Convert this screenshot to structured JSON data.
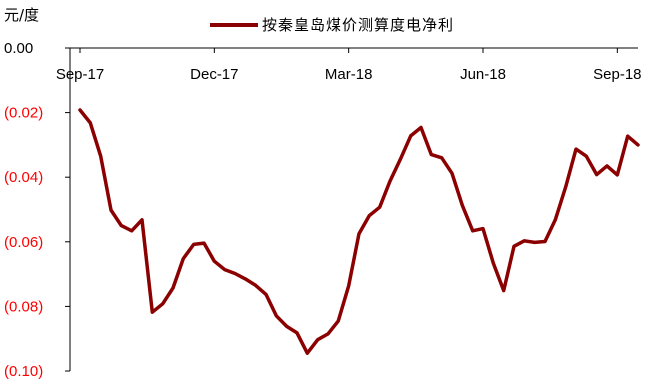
{
  "chart_data": {
    "type": "line",
    "title": "",
    "unit_label": "元/度",
    "xlabel": "",
    "ylabel": "",
    "ylim": [
      -0.1,
      0.0
    ],
    "y_ticks": [
      0.0,
      -0.02,
      -0.04,
      -0.06,
      -0.08,
      -0.1
    ],
    "y_tick_labels": [
      "0.00",
      "(0.02)",
      "(0.04)",
      "(0.06)",
      "(0.08)",
      "(0.10)"
    ],
    "negative_label_color": "#ff0000",
    "positive_label_color": "#000000",
    "x_tick_labels": [
      "Sep-17",
      "Dec-17",
      "Mar-18",
      "Jun-18",
      "Sep-18"
    ],
    "x_tick_positions": [
      0,
      13,
      26,
      39,
      52
    ],
    "legend_position": "top-center",
    "grid": false,
    "series": [
      {
        "name": "按秦皇岛煤价测算度电净利",
        "color": "#8b0000",
        "values": [
          -0.0192,
          -0.0232,
          -0.0335,
          -0.0502,
          -0.055,
          -0.0566,
          -0.0532,
          -0.0818,
          -0.0792,
          -0.0743,
          -0.0652,
          -0.0608,
          -0.0604,
          -0.066,
          -0.0686,
          -0.0698,
          -0.0715,
          -0.0735,
          -0.0763,
          -0.0829,
          -0.0862,
          -0.0882,
          -0.0945,
          -0.0903,
          -0.0885,
          -0.0845,
          -0.0736,
          -0.0575,
          -0.0519,
          -0.0493,
          -0.0412,
          -0.0345,
          -0.0272,
          -0.0246,
          -0.033,
          -0.034,
          -0.0388,
          -0.0487,
          -0.0566,
          -0.0559,
          -0.0666,
          -0.0751,
          -0.0614,
          -0.0597,
          -0.0602,
          -0.0599,
          -0.0532,
          -0.043,
          -0.0313,
          -0.0335,
          -0.0392,
          -0.0365,
          -0.0393,
          -0.0273,
          -0.03
        ]
      }
    ]
  }
}
